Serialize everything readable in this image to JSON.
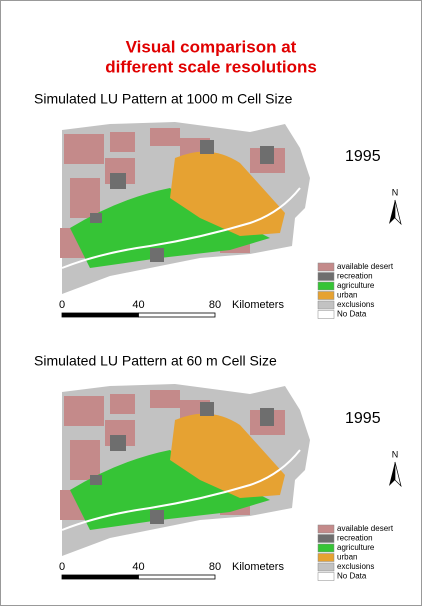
{
  "title": [
    "Visual comparison at",
    "different scale resolutions"
  ],
  "panels": [
    {
      "title": "Simulated LU Pattern at 1000 m Cell Size",
      "year": "1995",
      "north": "N",
      "scale": {
        "ticks": [
          0,
          40,
          80
        ],
        "unit": "Kilometers"
      },
      "legend": [
        {
          "label": "available desert",
          "color": "#c48a8a"
        },
        {
          "label": "recreation",
          "color": "#6e6e6e"
        },
        {
          "label": "agriculture",
          "color": "#36c436"
        },
        {
          "label": "urban",
          "color": "#e6a232"
        },
        {
          "label": "exclusions",
          "color": "#c2c2c2"
        },
        {
          "label": "No Data",
          "color": "#ffffff"
        }
      ]
    },
    {
      "title": "Simulated LU Pattern at 60 m Cell Size",
      "year": "1995",
      "north": "N",
      "scale": {
        "ticks": [
          0,
          40,
          80
        ],
        "unit": "Kilometers"
      },
      "legend": [
        {
          "label": "available desert",
          "color": "#c48a8a"
        },
        {
          "label": "recreation",
          "color": "#6e6e6e"
        },
        {
          "label": "agriculture",
          "color": "#36c436"
        },
        {
          "label": "urban",
          "color": "#e6a232"
        },
        {
          "label": "exclusions",
          "color": "#c2c2c2"
        },
        {
          "label": "No Data",
          "color": "#ffffff"
        }
      ]
    }
  ]
}
